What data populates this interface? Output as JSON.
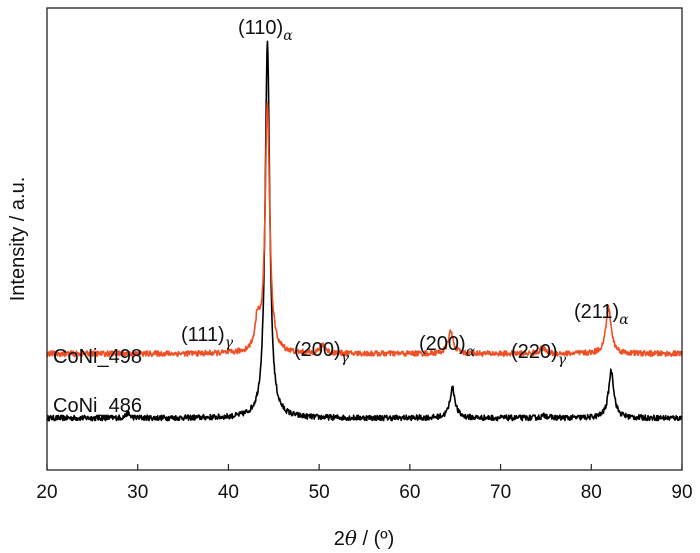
{
  "chart_data": {
    "type": "line",
    "title": "",
    "xlabel": {
      "prefix": "2",
      "symbol": "θ",
      "suffix": " / (º)"
    },
    "ylabel": "Intensity / a.u.",
    "xlim": [
      20,
      90
    ],
    "x_ticks": [
      "20",
      "30",
      "40",
      "50",
      "60",
      "70",
      "80",
      "90"
    ],
    "y_ticks_shown": false,
    "grid": false,
    "legend": "none",
    "series": [
      {
        "name": "CoNi_486",
        "color": "#000000",
        "offset": 0,
        "baseline": 1.0,
        "noise": 0.28,
        "peaks": [
          {
            "x": 28.9,
            "height": 0.5,
            "width": 0.25
          },
          {
            "x": 44.3,
            "height": 38.0,
            "width": 0.3
          },
          {
            "x": 64.7,
            "height": 3.0,
            "width": 0.35
          },
          {
            "x": 74.9,
            "height": 0.25,
            "width": 0.4
          },
          {
            "x": 82.2,
            "height": 4.8,
            "width": 0.35
          }
        ]
      },
      {
        "name": "CoNi_498",
        "color": "#f04e23",
        "offset": 6.5,
        "baseline": 1.0,
        "noise": 0.28,
        "peaks": [
          {
            "x": 43.2,
            "height": 3.0,
            "width": 0.3
          },
          {
            "x": 44.3,
            "height": 25.0,
            "width": 0.3
          },
          {
            "x": 50.4,
            "height": 0.9,
            "width": 0.35
          },
          {
            "x": 64.5,
            "height": 2.2,
            "width": 0.35
          },
          {
            "x": 74.6,
            "height": 0.55,
            "width": 0.4
          },
          {
            "x": 81.9,
            "height": 4.6,
            "width": 0.35
          }
        ]
      }
    ],
    "annotations": [
      {
        "main": "(110)",
        "sub": "α"
      },
      {
        "main": "(111)",
        "sub": "γ"
      },
      {
        "main": "(200)",
        "sub": "γ"
      },
      {
        "main": "(200)",
        "sub": "α"
      },
      {
        "main": "(220)",
        "sub": "γ"
      },
      {
        "main": "(211)",
        "sub": "α"
      }
    ]
  }
}
